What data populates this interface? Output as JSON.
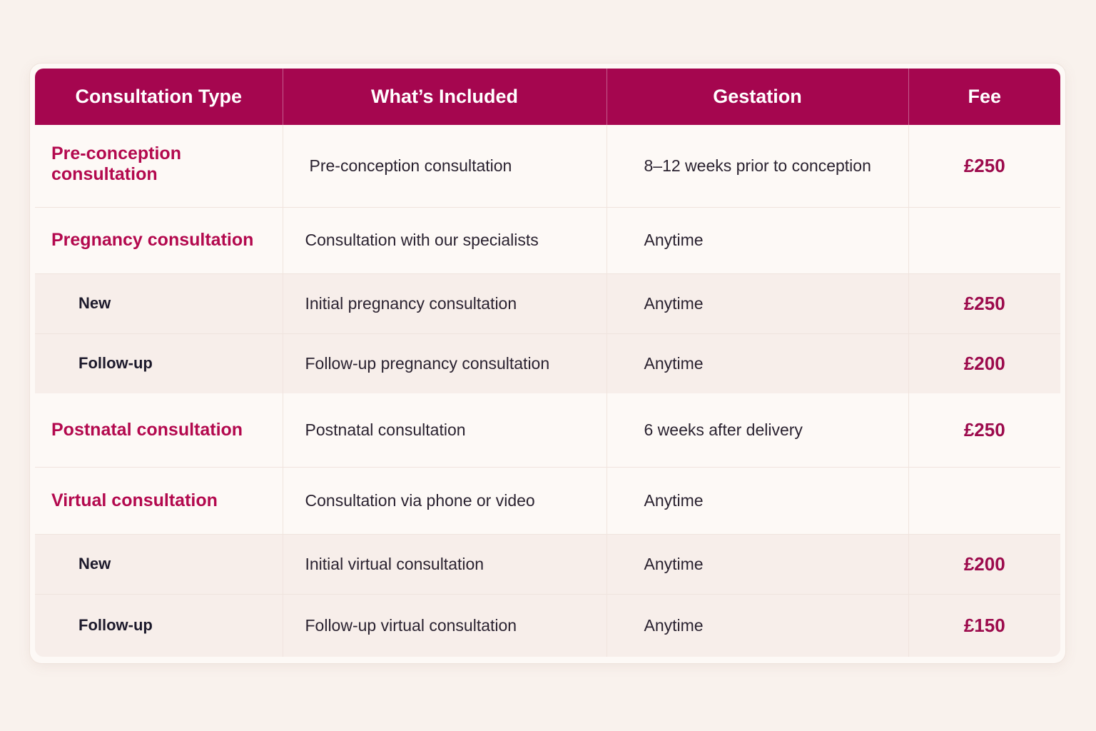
{
  "table": {
    "headers": {
      "type": "Consultation Type",
      "included": "What’s Included",
      "gestation": "Gestation",
      "fee": "Fee"
    },
    "rows": [
      {
        "kind": "group",
        "type": "Pre-conception consultation",
        "included": "Pre-conception consultation",
        "gestation": "8–12 weeks prior to conception",
        "fee": "£250"
      },
      {
        "kind": "group",
        "type": "Pregnancy consultation",
        "included": "Consultation with our specialists",
        "gestation": "Anytime",
        "fee": ""
      },
      {
        "kind": "sub",
        "type": "New",
        "included": "Initial pregnancy consultation",
        "gestation": "Anytime",
        "fee": "£250"
      },
      {
        "kind": "sub",
        "type": "Follow-up",
        "included": "Follow-up pregnancy consultation",
        "gestation": "Anytime",
        "fee": "£200"
      },
      {
        "kind": "group",
        "type": "Postnatal consultation",
        "included": "Postnatal consultation",
        "gestation": "6 weeks after delivery",
        "fee": "£250"
      },
      {
        "kind": "group",
        "type": "Virtual consultation",
        "included": "Consultation via phone or video",
        "gestation": "Anytime",
        "fee": ""
      },
      {
        "kind": "sub",
        "type": "New",
        "included": "Initial virtual consultation",
        "gestation": "Anytime",
        "fee": "£200"
      },
      {
        "kind": "sub",
        "type": "Follow-up",
        "included": "Follow-up virtual consultation",
        "gestation": "Anytime",
        "fee": "£150"
      }
    ]
  },
  "colors": {
    "header_background": "#a5064f",
    "header_text": "#ffffff",
    "group_label": "#b3094e",
    "fee_text": "#9c0a4c",
    "page_background": "#f9f2ed",
    "sub_row_background": "#f7eeea"
  }
}
